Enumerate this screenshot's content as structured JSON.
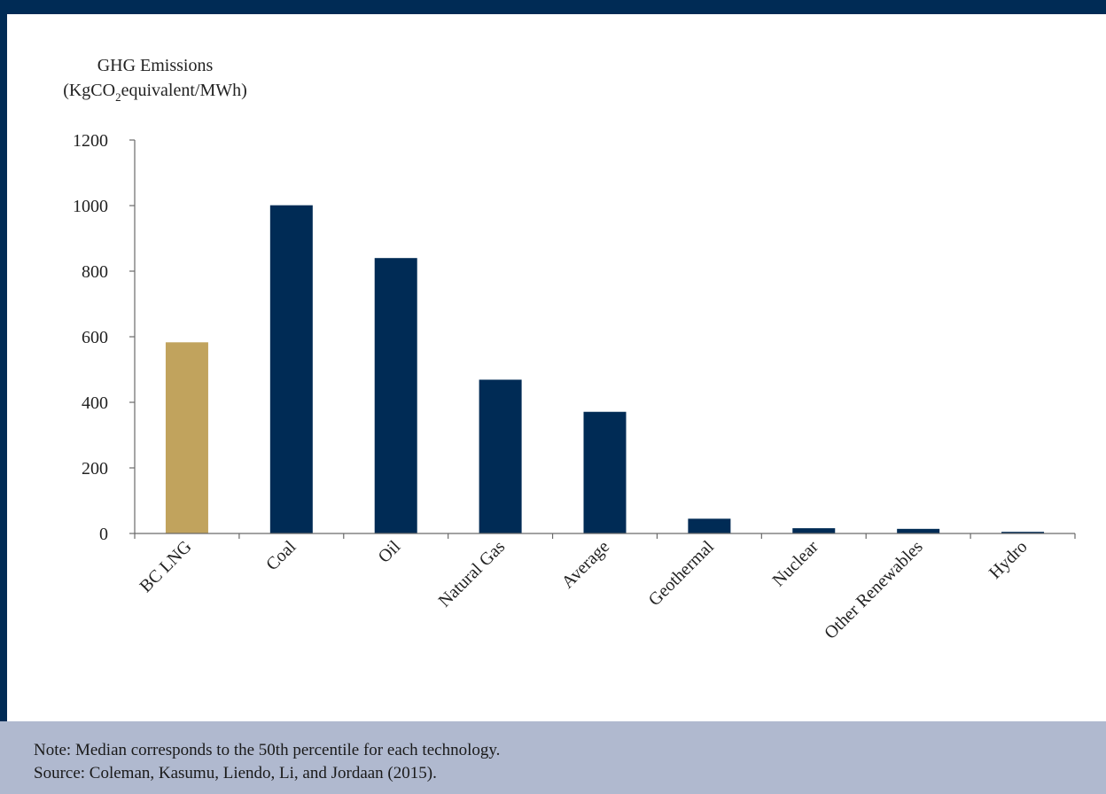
{
  "colors": {
    "frame": "#002b55",
    "highlight": "#c1a35d",
    "bar": "#002b55",
    "note_bg": "#b0b9cf"
  },
  "chart_data": {
    "type": "bar",
    "ylabel_line1": "GHG Emissions",
    "ylabel_line2_prefix": "(KgCO",
    "ylabel_line2_sub": "2",
    "ylabel_line2_suffix": "equivalent/MWh)",
    "ylim": [
      0,
      1200
    ],
    "yticks": [
      0,
      200,
      400,
      600,
      800,
      1000,
      1200
    ],
    "categories": [
      "BC LNG",
      "Coal",
      "Oil",
      "Natural Gas",
      "Average",
      "Geothermal",
      "Nuclear",
      "Other Renewables",
      "Hydro"
    ],
    "values": [
      583,
      1001,
      840,
      469,
      371,
      45,
      16,
      14,
      5
    ],
    "highlight_index": 0,
    "grid": false
  },
  "note": {
    "text": "Note: Median corresponds to the 50th percentile for each technology.",
    "source": "Source: Coleman, Kasumu, Liendo, Li, and Jordaan (2015)."
  }
}
